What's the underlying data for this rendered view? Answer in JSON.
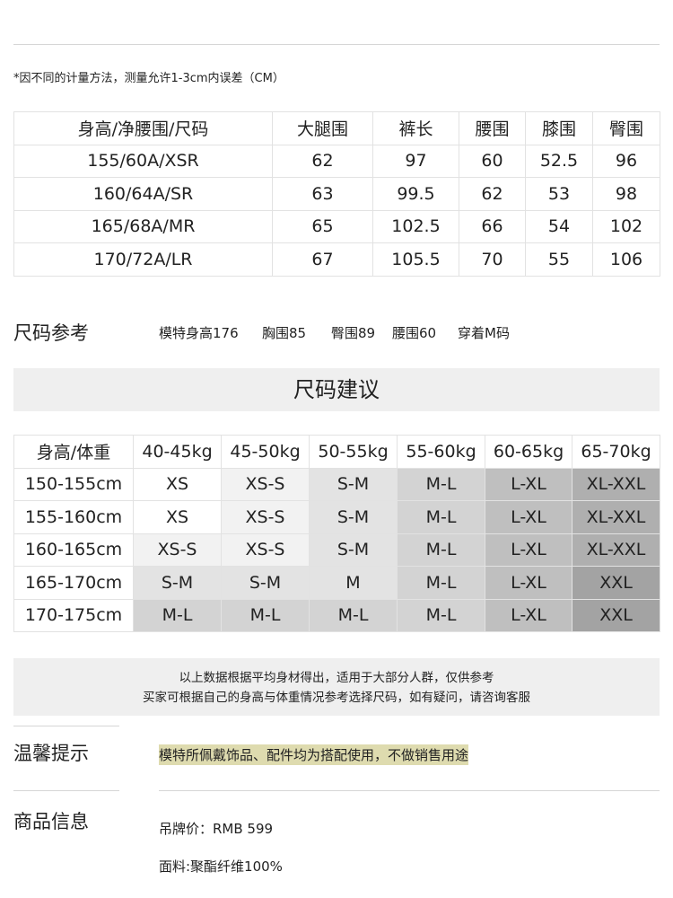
{
  "note": "*因不同的计量方法，测量允许1-3cm内误差（CM）",
  "measure_table": {
    "header": [
      "身高/净腰围/尺码",
      "大腿围",
      "裤长",
      "腰围",
      "膝围",
      "臀围"
    ],
    "rows": [
      [
        "155/60A/XSR",
        "62",
        "97",
        "60",
        "52.5",
        "96"
      ],
      [
        "160/64A/SR",
        "63",
        "99.5",
        "62",
        "53",
        "98"
      ],
      [
        "165/68A/MR",
        "65",
        "102.5",
        "66",
        "54",
        "102"
      ],
      [
        "170/72A/LR",
        "67",
        "105.5",
        "70",
        "55",
        "106"
      ]
    ]
  },
  "size_ref": {
    "title": "尺码参考",
    "items": [
      "模特身高176",
      "胸围85",
      "臀围89",
      "腰围60",
      "穿着M码"
    ]
  },
  "suggest": {
    "title": "尺码建议",
    "header": [
      "身高/体重",
      "40-45kg",
      "45-50kg",
      "50-55kg",
      "55-60kg",
      "60-65kg",
      "65-70kg"
    ],
    "rows": [
      [
        "150-155cm",
        "XS",
        "XS-S",
        "S-M",
        "M-L",
        "L-XL",
        "XL-XXL"
      ],
      [
        "155-160cm",
        "XS",
        "XS-S",
        "S-M",
        "M-L",
        "L-XL",
        "XL-XXL"
      ],
      [
        "160-165cm",
        "XS-S",
        "XS-S",
        "S-M",
        "M-L",
        "L-XL",
        "XL-XXL"
      ],
      [
        "165-170cm",
        "S-M",
        "S-M",
        "M",
        "M-L",
        "L-XL",
        "XXL"
      ],
      [
        "170-175cm",
        "M-L",
        "M-L",
        "M-L",
        "M-L",
        "L-XL",
        "XXL"
      ]
    ],
    "colors": [
      [
        "#ffffff",
        "#ffffff",
        "#f2f2f2",
        "#e3e3e3",
        "#d3d3d3",
        "#bfbfbf",
        "#afafaf"
      ],
      [
        "#ffffff",
        "#ffffff",
        "#f2f2f2",
        "#e3e3e3",
        "#d3d3d3",
        "#bfbfbf",
        "#afafaf"
      ],
      [
        "#ffffff",
        "#f2f2f2",
        "#f2f2f2",
        "#e3e3e3",
        "#d3d3d3",
        "#bfbfbf",
        "#afafaf"
      ],
      [
        "#ffffff",
        "#e3e3e3",
        "#e3e3e3",
        "#e3e3e3",
        "#d3d3d3",
        "#bfbfbf",
        "#a3a3a3"
      ],
      [
        "#ffffff",
        "#d3d3d3",
        "#d3d3d3",
        "#d3d3d3",
        "#d3d3d3",
        "#bfbfbf",
        "#a3a3a3"
      ]
    ],
    "disclaimer": [
      "以上数据根据平均身材得出，适用于大部分人群，仅供参考",
      "买家可根据自己的身高与体重情况参考选择尺码，如有疑问，请咨询客服"
    ]
  },
  "tips": {
    "title": "温馨提示",
    "text": "模特所佩戴饰品、配件均为搭配使用，不做销售用途"
  },
  "product": {
    "title": "商品信息",
    "lines": [
      "吊牌价：RMB 599",
      "面料:聚酯纤维100%"
    ]
  }
}
